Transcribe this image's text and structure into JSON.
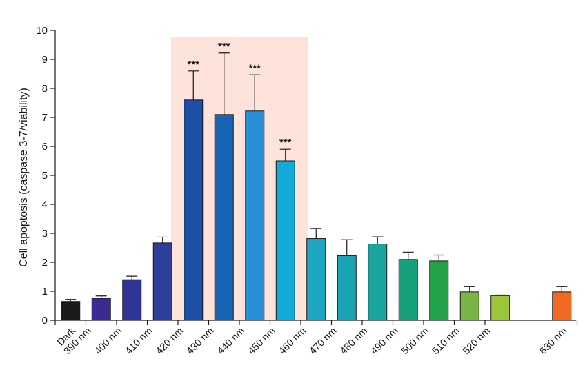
{
  "chart_data": {
    "type": "bar",
    "title": "",
    "xlabel": "",
    "ylabel": "Cell apoptosis (caspase 3-7/viability)",
    "ylim": [
      0,
      10
    ],
    "yticks": [
      "0",
      "1",
      "2",
      "3",
      "4",
      "5",
      "6",
      "7",
      "8",
      "9",
      "10"
    ],
    "xticks": [
      "Dark",
      "390 nm",
      "400 nm",
      "410 nm",
      "420 nm",
      "430 nm",
      "440 nm",
      "450 nm",
      "460 nm",
      "470 nm",
      "480 nm",
      "490 nm",
      "500 nm",
      "510 nm",
      "520 nm",
      "630 nm"
    ],
    "bars": [
      {
        "slot": 0.5,
        "value": 0.65,
        "error": 0.07,
        "color": "#1a1a1a",
        "sig": ""
      },
      {
        "slot": 1.5,
        "value": 0.76,
        "error": 0.08,
        "color": "#3a2a93",
        "sig": ""
      },
      {
        "slot": 2.5,
        "value": 1.4,
        "error": 0.12,
        "color": "#2f3495",
        "sig": ""
      },
      {
        "slot": 3.5,
        "value": 2.67,
        "error": 0.2,
        "color": "#2e3e9b",
        "sig": ""
      },
      {
        "slot": 4.5,
        "value": 7.6,
        "error": 1.0,
        "color": "#1d4fa6",
        "sig": "***"
      },
      {
        "slot": 5.5,
        "value": 7.1,
        "error": 2.12,
        "color": "#1764b4",
        "sig": "***"
      },
      {
        "slot": 6.5,
        "value": 7.22,
        "error": 1.25,
        "color": "#2a8fd8",
        "sig": "***"
      },
      {
        "slot": 7.5,
        "value": 5.5,
        "error": 0.4,
        "color": "#12aad8",
        "sig": "***"
      },
      {
        "slot": 8.5,
        "value": 2.82,
        "error": 0.35,
        "color": "#1ea5c2",
        "sig": ""
      },
      {
        "slot": 9.5,
        "value": 2.23,
        "error": 0.55,
        "color": "#18a4b4",
        "sig": ""
      },
      {
        "slot": 10.5,
        "value": 2.63,
        "error": 0.25,
        "color": "#1aa69e",
        "sig": ""
      },
      {
        "slot": 11.5,
        "value": 2.1,
        "error": 0.25,
        "color": "#17a07c",
        "sig": ""
      },
      {
        "slot": 12.5,
        "value": 2.05,
        "error": 0.2,
        "color": "#24a24a",
        "sig": ""
      },
      {
        "slot": 13.5,
        "value": 0.98,
        "error": 0.18,
        "color": "#78b446",
        "sig": ""
      },
      {
        "slot": 14.5,
        "value": 0.85,
        "error": 0.02,
        "color": "#9cc63a",
        "sig": ""
      },
      {
        "slot": 16.5,
        "value": 0.98,
        "error": 0.18,
        "color": "#f26a22",
        "sig": ""
      }
    ],
    "highlight": {
      "from_slot": 4,
      "to_slot": 8,
      "color": "#fde3da"
    },
    "grid": false,
    "legend": "none"
  }
}
